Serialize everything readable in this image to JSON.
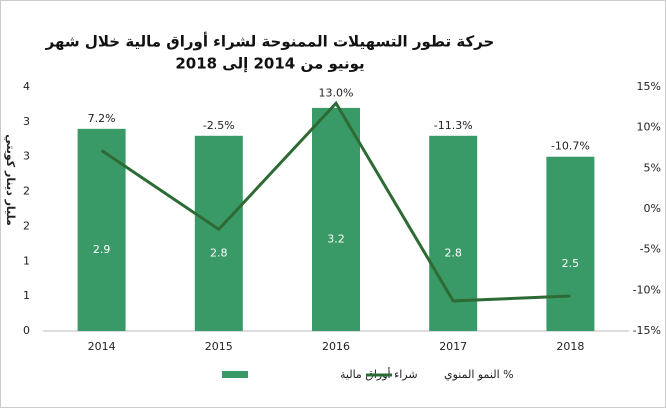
{
  "chart_data": {
    "type": "bar_line",
    "title": "حركة تطور التسهيلات الممنوحة لشراء أوراق مالية خلال شهر",
    "subtitle": "يونيو من 2014 إلى 2018",
    "y_label": "مليار دينار كويتي",
    "categories": [
      "2014",
      "2015",
      "2016",
      "2017",
      "2018"
    ],
    "series": [
      {
        "name": "شراء أوراق مالية",
        "color": "#3a9a67",
        "values": [
          2.9,
          2.8,
          3.2,
          2.8,
          2.5
        ]
      },
      {
        "name": "% النمو المنوي",
        "color": "#2e6b34",
        "axis": "y2",
        "values": [
          7.2,
          -2.5,
          13.0,
          -11.3,
          -10.7
        ],
        "value_labels": [
          "7.2%",
          "-2.5%",
          "13.0%",
          "-11.3%",
          "-10.7%"
        ]
      }
    ],
    "ylim": [
      0,
      3.5
    ],
    "yticks": [
      {
        "value": 0,
        "label": "0"
      },
      {
        "value": 0.5,
        "label": "1"
      },
      {
        "value": 1,
        "label": "1"
      },
      {
        "value": 1.5,
        "label": "2"
      },
      {
        "value": 2,
        "label": "2"
      },
      {
        "value": 2.5,
        "label": "3"
      },
      {
        "value": 3,
        "label": "3"
      },
      {
        "value": 3.5,
        "label": "4"
      }
    ],
    "y2lim": [
      -15,
      15
    ],
    "y2ticks": [
      {
        "value": -15,
        "label": "-15%"
      },
      {
        "value": -10,
        "label": "-10%"
      },
      {
        "value": -5,
        "label": "-5%"
      },
      {
        "value": 0,
        "label": "0%"
      },
      {
        "value": 5,
        "label": "5%"
      },
      {
        "value": 10,
        "label": "10%"
      },
      {
        "value": 15,
        "label": "15%"
      }
    ]
  }
}
